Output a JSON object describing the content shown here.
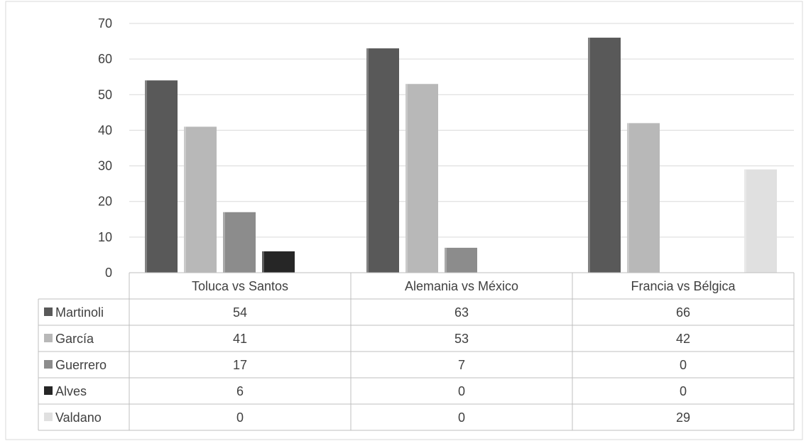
{
  "chart_data": {
    "type": "bar",
    "title": "",
    "xlabel": "",
    "ylabel": "",
    "ylim": [
      0,
      70
    ],
    "yticks": [
      0,
      10,
      20,
      30,
      40,
      50,
      60,
      70
    ],
    "grid": true,
    "legend": "data-table",
    "categories": [
      "Toluca vs Santos",
      "Alemania vs México",
      "Francia vs Bélgica"
    ],
    "series": [
      {
        "name": "Martinoli",
        "values": [
          54,
          63,
          66
        ],
        "color": "#595959"
      },
      {
        "name": "García",
        "values": [
          41,
          53,
          42
        ],
        "color": "#b8b8b8"
      },
      {
        "name": "Guerrero",
        "values": [
          17,
          7,
          0
        ],
        "color": "#8c8c8c"
      },
      {
        "name": "Alves",
        "values": [
          6,
          0,
          0
        ],
        "color": "#262626"
      },
      {
        "name": "Valdano",
        "values": [
          0,
          0,
          29
        ],
        "color": "#e0e0e0"
      }
    ]
  }
}
